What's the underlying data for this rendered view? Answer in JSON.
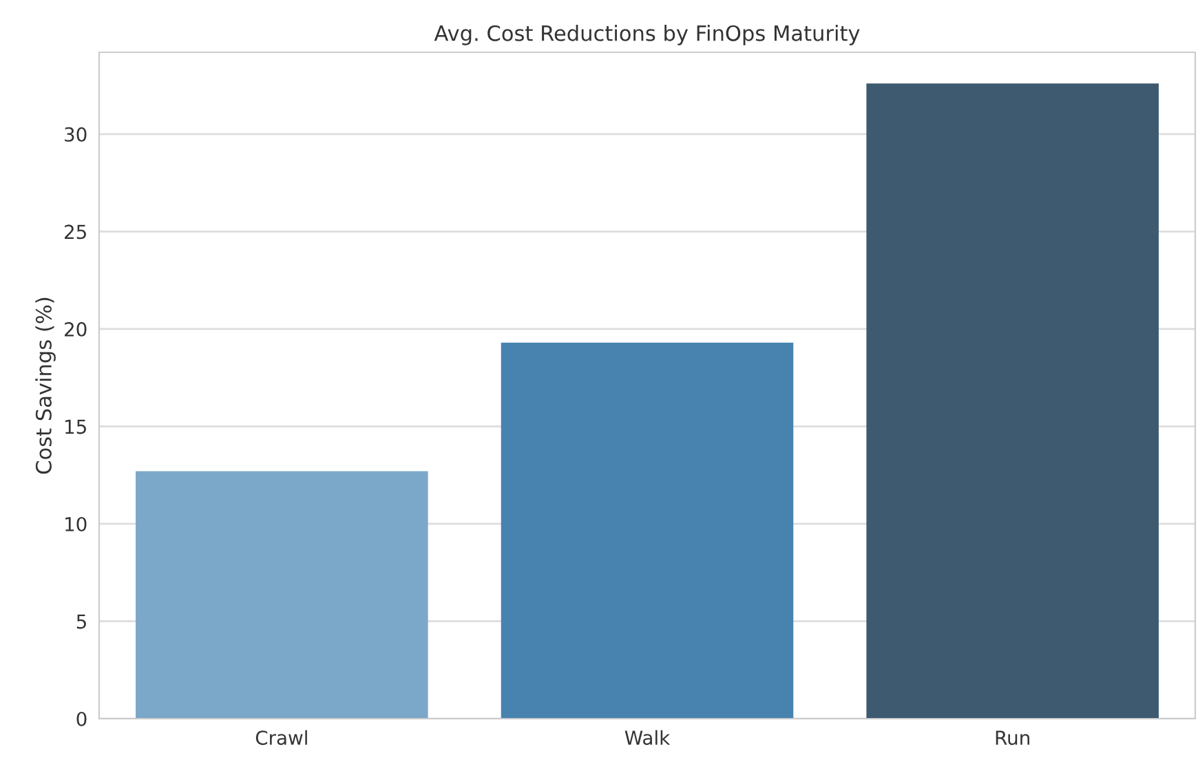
{
  "chart_data": {
    "type": "bar",
    "title": "Avg. Cost Reductions by FinOps Maturity",
    "ylabel": "Cost Savings (%)",
    "categories": [
      "Crawl",
      "Walk",
      "Run"
    ],
    "values": [
      12.7,
      19.3,
      32.6
    ],
    "colors": [
      "#7ba7c9",
      "#4883b0",
      "#3d5a70"
    ],
    "ylim": [
      0,
      34.2
    ],
    "yticks": [
      0,
      5,
      10,
      15,
      20,
      25,
      30
    ],
    "grid": "y"
  }
}
